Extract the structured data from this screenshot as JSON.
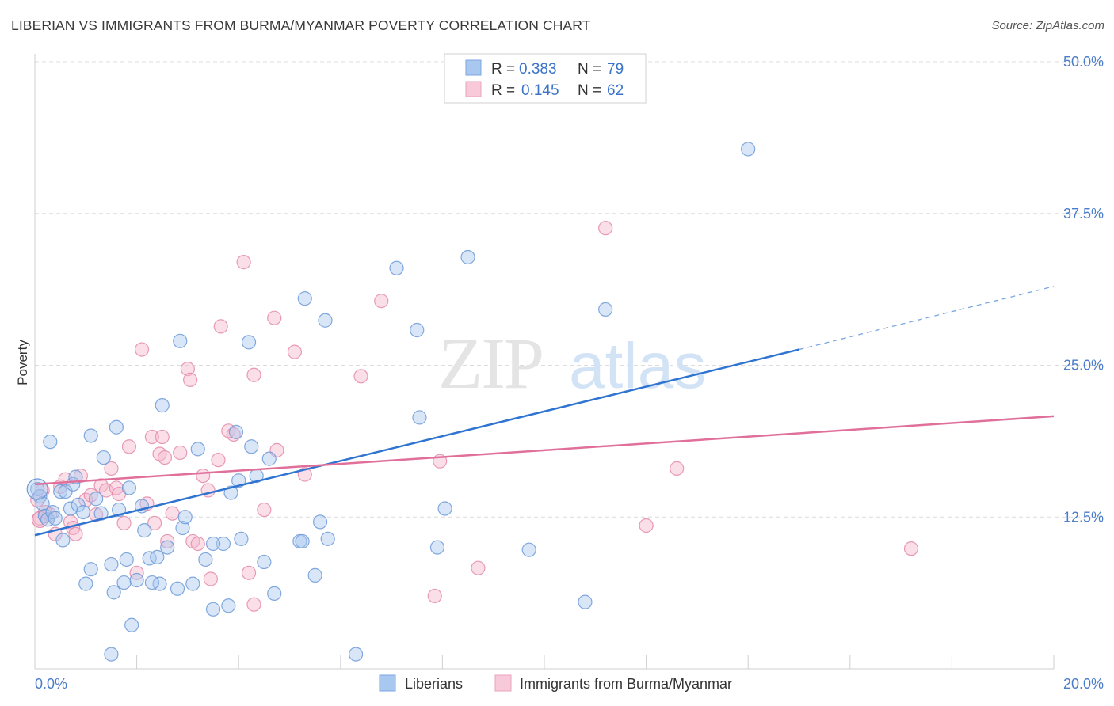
{
  "title": "LIBERIAN VS IMMIGRANTS FROM BURMA/MYANMAR POVERTY CORRELATION CHART",
  "source": "Source: ZipAtlas.com",
  "colors": {
    "blue": "#4a86d8",
    "blue_fill": "#a9c8f0",
    "pink": "#e06b95",
    "pink_fill": "#f5b7cc",
    "tick": "#4a7cc9",
    "grid": "#d9d9d9"
  },
  "legend": {
    "r_label": "R =",
    "n_label": "N =",
    "series": [
      {
        "r": "0.383",
        "n": "79"
      },
      {
        "r": "0.145",
        "n": "62"
      }
    ]
  },
  "watermark": {
    "zip": "ZIP",
    "atlas": "atlas"
  },
  "chart_data": {
    "type": "scatter",
    "title": "LIBERIAN VS IMMIGRANTS FROM BURMA/MYANMAR POVERTY CORRELATION CHART",
    "xlabel": "",
    "ylabel": "Poverty",
    "xlim": [
      0,
      20
    ],
    "ylim": [
      0,
      50
    ],
    "x_ticks": [
      "0.0%",
      "20.0%"
    ],
    "y_ticks": [
      {
        "value": 12.5,
        "label": "12.5%"
      },
      {
        "value": 25.0,
        "label": "25.0%"
      },
      {
        "value": 37.5,
        "label": "37.5%"
      },
      {
        "value": 50.0,
        "label": "50.0%"
      }
    ],
    "series": [
      {
        "name": "Liberians",
        "color": "#4a86d8",
        "trend": {
          "x0": 0,
          "y0": 11.0,
          "x1": 15.0,
          "y1": 26.3,
          "dash_x1": 20.0,
          "dash_y1": 31.5
        },
        "points": [
          [
            0.05,
            14.8
          ],
          [
            0.1,
            14.2
          ],
          [
            0.15,
            13.6
          ],
          [
            0.2,
            12.6
          ],
          [
            0.25,
            12.3
          ],
          [
            0.3,
            18.7
          ],
          [
            0.35,
            12.9
          ],
          [
            0.4,
            12.4
          ],
          [
            0.5,
            14.6
          ],
          [
            0.55,
            10.6
          ],
          [
            0.6,
            14.6
          ],
          [
            0.7,
            13.2
          ],
          [
            0.75,
            15.2
          ],
          [
            0.8,
            15.8
          ],
          [
            0.85,
            13.5
          ],
          [
            0.95,
            12.9
          ],
          [
            1.1,
            19.2
          ],
          [
            1.2,
            14.0
          ],
          [
            1.3,
            12.8
          ],
          [
            1.35,
            17.4
          ],
          [
            1.1,
            8.2
          ],
          [
            1.0,
            7.0
          ],
          [
            1.5,
            8.6
          ],
          [
            1.6,
            19.9
          ],
          [
            1.65,
            13.1
          ],
          [
            1.75,
            7.1
          ],
          [
            1.85,
            14.9
          ],
          [
            1.9,
            3.6
          ],
          [
            2.0,
            7.3
          ],
          [
            2.1,
            13.4
          ],
          [
            2.15,
            11.4
          ],
          [
            2.25,
            9.1
          ],
          [
            2.4,
            9.2
          ],
          [
            2.45,
            7.0
          ],
          [
            2.5,
            21.7
          ],
          [
            2.6,
            10.0
          ],
          [
            2.8,
            6.6
          ],
          [
            2.85,
            27.0
          ],
          [
            2.9,
            11.6
          ],
          [
            2.95,
            12.5
          ],
          [
            3.1,
            7.0
          ],
          [
            3.2,
            18.1
          ],
          [
            3.35,
            9.0
          ],
          [
            3.5,
            4.9
          ],
          [
            3.7,
            10.3
          ],
          [
            3.8,
            5.2
          ],
          [
            3.85,
            14.5
          ],
          [
            3.95,
            19.5
          ],
          [
            4.0,
            15.5
          ],
          [
            4.05,
            10.7
          ],
          [
            4.2,
            26.9
          ],
          [
            4.25,
            18.3
          ],
          [
            4.35,
            15.9
          ],
          [
            4.5,
            8.8
          ],
          [
            4.6,
            17.3
          ],
          [
            4.7,
            6.2
          ],
          [
            5.2,
            10.5
          ],
          [
            5.25,
            10.5
          ],
          [
            5.3,
            30.5
          ],
          [
            5.5,
            7.7
          ],
          [
            5.6,
            12.1
          ],
          [
            5.7,
            28.7
          ],
          [
            5.75,
            10.7
          ],
          [
            6.3,
            1.2
          ],
          [
            7.1,
            33.0
          ],
          [
            7.5,
            27.9
          ],
          [
            7.55,
            20.7
          ],
          [
            7.9,
            10.0
          ],
          [
            8.05,
            13.2
          ],
          [
            8.5,
            33.9
          ],
          [
            9.7,
            9.8
          ],
          [
            10.8,
            5.5
          ],
          [
            11.2,
            29.6
          ],
          [
            14.0,
            42.8
          ],
          [
            1.5,
            1.2
          ],
          [
            1.55,
            6.3
          ],
          [
            3.5,
            10.3
          ],
          [
            2.3,
            7.1
          ],
          [
            1.8,
            9.0
          ]
        ]
      },
      {
        "name": "Immigrants from Burma/Myanmar",
        "color": "#e06b95",
        "trend": {
          "x0": 0,
          "y0": 15.2,
          "x1": 20.0,
          "y1": 20.8
        },
        "points": [
          [
            0.05,
            13.9
          ],
          [
            0.1,
            12.4
          ],
          [
            0.15,
            14.7
          ],
          [
            0.3,
            12.7
          ],
          [
            0.4,
            11.1
          ],
          [
            0.5,
            15.0
          ],
          [
            0.6,
            15.6
          ],
          [
            0.7,
            12.1
          ],
          [
            0.75,
            11.6
          ],
          [
            0.8,
            11.1
          ],
          [
            0.9,
            15.9
          ],
          [
            1.0,
            13.9
          ],
          [
            1.1,
            14.3
          ],
          [
            1.2,
            12.7
          ],
          [
            1.3,
            15.1
          ],
          [
            1.4,
            14.7
          ],
          [
            1.5,
            16.5
          ],
          [
            1.6,
            14.9
          ],
          [
            1.65,
            14.4
          ],
          [
            1.75,
            12.0
          ],
          [
            1.85,
            18.3
          ],
          [
            2.0,
            7.9
          ],
          [
            2.1,
            26.3
          ],
          [
            2.2,
            13.6
          ],
          [
            2.3,
            19.1
          ],
          [
            2.35,
            12.0
          ],
          [
            2.45,
            17.7
          ],
          [
            2.5,
            19.1
          ],
          [
            2.55,
            17.4
          ],
          [
            2.7,
            12.8
          ],
          [
            2.85,
            17.8
          ],
          [
            3.0,
            24.7
          ],
          [
            3.05,
            23.8
          ],
          [
            3.1,
            10.5
          ],
          [
            3.2,
            10.3
          ],
          [
            3.3,
            15.9
          ],
          [
            3.4,
            14.7
          ],
          [
            3.45,
            7.4
          ],
          [
            3.6,
            17.2
          ],
          [
            3.65,
            28.2
          ],
          [
            3.8,
            19.6
          ],
          [
            3.9,
            19.3
          ],
          [
            4.1,
            33.5
          ],
          [
            4.2,
            7.9
          ],
          [
            4.3,
            24.2
          ],
          [
            4.3,
            5.3
          ],
          [
            4.5,
            13.1
          ],
          [
            4.7,
            28.9
          ],
          [
            4.75,
            18.0
          ],
          [
            5.1,
            26.1
          ],
          [
            5.3,
            16.0
          ],
          [
            6.4,
            24.1
          ],
          [
            6.8,
            30.3
          ],
          [
            7.85,
            6.0
          ],
          [
            7.95,
            17.1
          ],
          [
            8.7,
            8.3
          ],
          [
            11.2,
            36.3
          ],
          [
            12.0,
            11.8
          ],
          [
            12.6,
            16.5
          ],
          [
            17.2,
            9.9
          ],
          [
            2.6,
            10.5
          ],
          [
            0.2,
            12.9
          ]
        ]
      }
    ]
  },
  "bottom_legend": [
    {
      "label": "Liberians"
    },
    {
      "label": "Immigrants from Burma/Myanmar"
    }
  ]
}
